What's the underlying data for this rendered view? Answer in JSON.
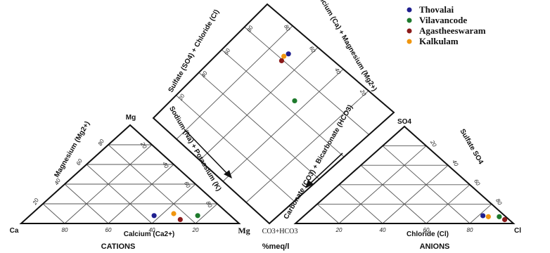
{
  "chart_data": {
    "type": "scatter",
    "subtype": "piper-trilinear",
    "labels": {
      "diamond_left_axis": "Sulfate (SO4) + Chloride (Cl)",
      "diamond_right_axis": "Calcium (Ca) + Magnesium (Mg2+)",
      "cation_left_axis": "Magnesium (Mg2+)",
      "cation_bottom_axis": "Calcium (Ca2+)",
      "cation_right_axis": "Sodium (Na) + Potassium (K)",
      "anion_left_axis": "Carbonate (CO3) + Bicarbonate (HCO3)",
      "anion_right_axis": "Sulfate SO4",
      "anion_bottom_axis": "Chloride (Cl)",
      "corner_mg_top": "Mg",
      "corner_ca": "Ca",
      "corner_mg_bottom": "Mg",
      "corner_co3": "CO3+HCO3",
      "corner_so4": "SO4",
      "corner_cl": "Cl",
      "cations": "CATIONS",
      "anions": "ANIONS",
      "units": "%meq/l"
    },
    "ticks": {
      "cation_bottom": [
        "80",
        "60",
        "40",
        "20"
      ],
      "cation_left": [
        "20",
        "40",
        "60",
        "80"
      ],
      "cation_right": [
        "20",
        "40",
        "60",
        "80"
      ],
      "anion_bottom": [
        "20",
        "40",
        "60",
        "80"
      ],
      "anion_right": [
        "80",
        "60",
        "40",
        "20"
      ],
      "diamond_left": [
        "20",
        "40",
        "60",
        "80"
      ],
      "diamond_right": [
        "80",
        "60",
        "40",
        "20"
      ]
    },
    "series": [
      {
        "name": "Thovalai",
        "color": "#1f1f8f",
        "cation": {
          "ca": 35,
          "mg": 8
        },
        "anion": {
          "cl": 82,
          "so4": 8
        },
        "diamond": {
          "so4_cl": 86,
          "ca_mg": 68
        }
      },
      {
        "name": "Vilavancode",
        "color": "#1e7a2c",
        "cation": {
          "ca": 15,
          "mg": 8
        },
        "anion": {
          "cl": 90,
          "so4": 7
        },
        "diamond": {
          "so4_cl": 67,
          "ca_mg": 44
        }
      },
      {
        "name": "Agastheeswaram",
        "color": "#8b1a1a",
        "cation": {
          "ca": 25,
          "mg": 4
        },
        "anion": {
          "cl": 94,
          "so4": 4
        },
        "diamond": {
          "so4_cl": 80,
          "ca_mg": 68
        }
      },
      {
        "name": "Kalkulam",
        "color": "#f0960f",
        "cation": {
          "ca": 25,
          "mg": 10
        },
        "anion": {
          "cl": 85,
          "so4": 7
        },
        "diamond": {
          "so4_cl": 83,
          "ca_mg": 69
        }
      }
    ]
  }
}
